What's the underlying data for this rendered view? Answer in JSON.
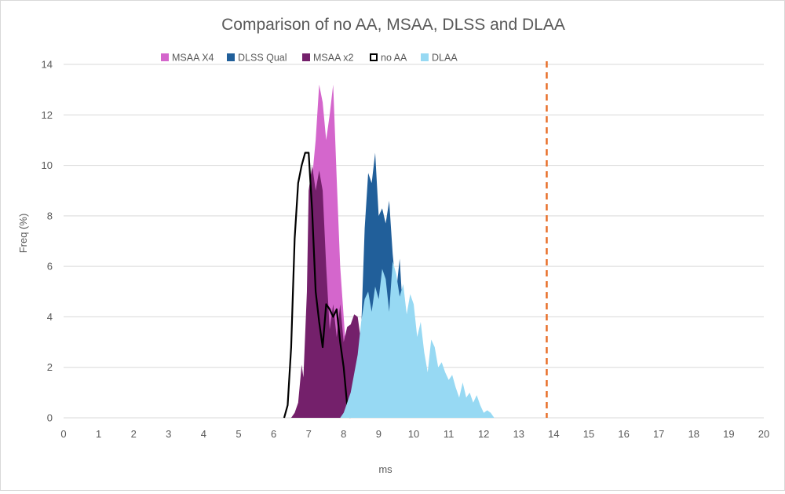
{
  "chart_data": {
    "type": "area",
    "title": "Comparison of no AA, MSAA, DLSS and DLAA",
    "xlabel": "ms",
    "ylabel": "Freq (%)",
    "xlim": [
      0,
      20
    ],
    "ylim": [
      0,
      14
    ],
    "x_ticks": [
      "0",
      "1",
      "2",
      "3",
      "4",
      "5",
      "6",
      "7",
      "8",
      "9",
      "10",
      "11",
      "12",
      "13",
      "14",
      "15",
      "16",
      "17",
      "18",
      "19",
      "20"
    ],
    "y_ticks": [
      "0",
      "2",
      "4",
      "6",
      "8",
      "10",
      "12",
      "14"
    ],
    "grid": "horizontal",
    "legend_position": "top",
    "reference_line": {
      "x": 13.8,
      "color": "#e8702a",
      "style": "dashed"
    },
    "series": [
      {
        "name": "MSAA X4",
        "style": "area",
        "color": "#d466cc",
        "points": [
          [
            6.7,
            0
          ],
          [
            6.8,
            0.6
          ],
          [
            6.9,
            2.0
          ],
          [
            7.0,
            5.5
          ],
          [
            7.1,
            9.5
          ],
          [
            7.2,
            11.0
          ],
          [
            7.3,
            13.2
          ],
          [
            7.4,
            12.5
          ],
          [
            7.5,
            11.0
          ],
          [
            7.6,
            12.0
          ],
          [
            7.7,
            13.2
          ],
          [
            7.8,
            9.5
          ],
          [
            7.9,
            6.0
          ],
          [
            8.0,
            4.0
          ],
          [
            8.1,
            2.0
          ],
          [
            8.2,
            0.6
          ],
          [
            8.3,
            0
          ]
        ]
      },
      {
        "name": "DLSS Qual",
        "style": "area",
        "color": "#215f9a",
        "points": [
          [
            8.3,
            0
          ],
          [
            8.4,
            1.0
          ],
          [
            8.5,
            3.5
          ],
          [
            8.6,
            7.5
          ],
          [
            8.7,
            9.7
          ],
          [
            8.8,
            9.3
          ],
          [
            8.9,
            10.5
          ],
          [
            9.0,
            8.0
          ],
          [
            9.1,
            8.3
          ],
          [
            9.2,
            7.7
          ],
          [
            9.3,
            8.6
          ],
          [
            9.4,
            6.5
          ],
          [
            9.5,
            5.0
          ],
          [
            9.6,
            6.3
          ],
          [
            9.7,
            4.0
          ],
          [
            9.8,
            2.5
          ],
          [
            9.9,
            1.5
          ],
          [
            10.0,
            0.5
          ],
          [
            10.1,
            0
          ]
        ]
      },
      {
        "name": "MSAA x2",
        "style": "area",
        "color": "#74206b",
        "points": [
          [
            6.5,
            0
          ],
          [
            6.6,
            0.2
          ],
          [
            6.7,
            0.6
          ],
          [
            6.8,
            2.1
          ],
          [
            6.85,
            1.6
          ],
          [
            6.9,
            3.3
          ],
          [
            6.95,
            5.0
          ],
          [
            7.0,
            9.0
          ],
          [
            7.1,
            10.0
          ],
          [
            7.2,
            9.0
          ],
          [
            7.3,
            9.8
          ],
          [
            7.4,
            9.0
          ],
          [
            7.5,
            6.0
          ],
          [
            7.6,
            3.5
          ],
          [
            7.7,
            4.5
          ],
          [
            7.8,
            3.2
          ],
          [
            7.9,
            4.5
          ],
          [
            8.0,
            3.0
          ],
          [
            8.1,
            3.6
          ],
          [
            8.2,
            3.7
          ],
          [
            8.3,
            4.1
          ],
          [
            8.4,
            4.0
          ],
          [
            8.5,
            3.0
          ],
          [
            8.6,
            1.5
          ],
          [
            8.7,
            0.5
          ],
          [
            8.8,
            0
          ]
        ]
      },
      {
        "name": "no AA",
        "style": "line",
        "color": "#000000",
        "points": [
          [
            6.3,
            0
          ],
          [
            6.4,
            0.5
          ],
          [
            6.5,
            2.8
          ],
          [
            6.6,
            7.1
          ],
          [
            6.7,
            9.3
          ],
          [
            6.8,
            10.0
          ],
          [
            6.9,
            10.5
          ],
          [
            7.0,
            10.5
          ],
          [
            7.1,
            8.2
          ],
          [
            7.2,
            5.0
          ],
          [
            7.3,
            3.8
          ],
          [
            7.4,
            2.8
          ],
          [
            7.5,
            4.5
          ],
          [
            7.6,
            4.3
          ],
          [
            7.7,
            4.0
          ],
          [
            7.8,
            4.3
          ],
          [
            7.9,
            3.0
          ],
          [
            8.0,
            2.0
          ],
          [
            8.1,
            0.5
          ],
          [
            8.2,
            0
          ]
        ]
      },
      {
        "name": "DLAA",
        "style": "area",
        "color": "#97d9f3",
        "points": [
          [
            7.9,
            0
          ],
          [
            8.0,
            0.2
          ],
          [
            8.2,
            1.0
          ],
          [
            8.4,
            2.5
          ],
          [
            8.5,
            3.8
          ],
          [
            8.6,
            4.7
          ],
          [
            8.7,
            5.0
          ],
          [
            8.8,
            4.2
          ],
          [
            8.9,
            5.2
          ],
          [
            9.0,
            4.7
          ],
          [
            9.1,
            5.9
          ],
          [
            9.2,
            5.5
          ],
          [
            9.3,
            4.2
          ],
          [
            9.4,
            6.2
          ],
          [
            9.5,
            5.7
          ],
          [
            9.6,
            4.8
          ],
          [
            9.7,
            5.3
          ],
          [
            9.8,
            4.1
          ],
          [
            9.9,
            4.9
          ],
          [
            10.0,
            4.5
          ],
          [
            10.1,
            3.2
          ],
          [
            10.2,
            3.8
          ],
          [
            10.3,
            2.6
          ],
          [
            10.4,
            1.8
          ],
          [
            10.5,
            3.1
          ],
          [
            10.6,
            2.8
          ],
          [
            10.7,
            2.0
          ],
          [
            10.8,
            2.2
          ],
          [
            10.9,
            1.8
          ],
          [
            11.0,
            1.5
          ],
          [
            11.1,
            1.7
          ],
          [
            11.2,
            1.2
          ],
          [
            11.3,
            0.8
          ],
          [
            11.4,
            1.4
          ],
          [
            11.5,
            0.8
          ],
          [
            11.6,
            1.0
          ],
          [
            11.7,
            0.6
          ],
          [
            11.8,
            0.9
          ],
          [
            11.9,
            0.5
          ],
          [
            12.0,
            0.2
          ],
          [
            12.1,
            0.3
          ],
          [
            12.2,
            0.2
          ],
          [
            12.3,
            0
          ]
        ]
      }
    ]
  }
}
